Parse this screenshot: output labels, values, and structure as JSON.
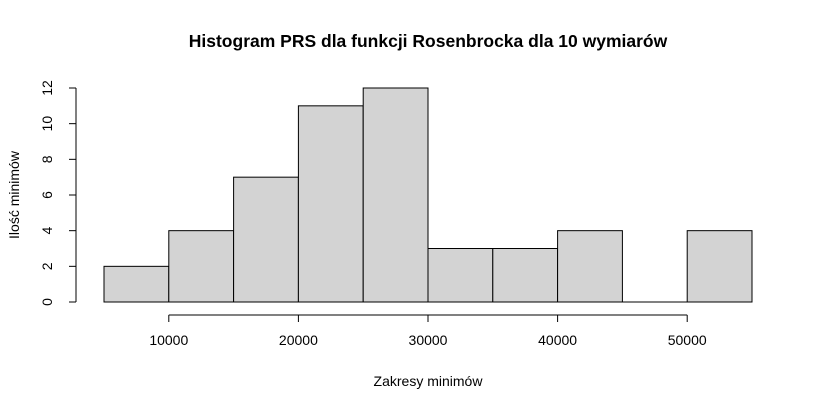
{
  "chart_data": {
    "type": "bar",
    "title": "Histogram PRS dla funkcji Rosenbrocka dla 10 wymiarów",
    "xlabel": "Zakresy minimów",
    "ylabel": "Ilość minimów",
    "bins": [
      {
        "from": 5000,
        "to": 10000,
        "count": 2
      },
      {
        "from": 10000,
        "to": 15000,
        "count": 4
      },
      {
        "from": 15000,
        "to": 20000,
        "count": 7
      },
      {
        "from": 20000,
        "to": 25000,
        "count": 11
      },
      {
        "from": 25000,
        "to": 30000,
        "count": 12
      },
      {
        "from": 30000,
        "to": 35000,
        "count": 3
      },
      {
        "from": 35000,
        "to": 40000,
        "count": 3
      },
      {
        "from": 40000,
        "to": 45000,
        "count": 4
      },
      {
        "from": 45000,
        "to": 50000,
        "count": 0
      },
      {
        "from": 50000,
        "to": 55000,
        "count": 4
      }
    ],
    "xlim": [
      5000,
      55000
    ],
    "ylim": [
      0,
      12
    ],
    "x_ticks": [
      10000,
      20000,
      30000,
      40000,
      50000
    ],
    "y_ticks": [
      0,
      2,
      4,
      6,
      8,
      10,
      12
    ],
    "colors": {
      "bar_fill": "#d3d3d3",
      "bar_stroke": "#000000"
    },
    "grid": false,
    "legend": "none"
  }
}
